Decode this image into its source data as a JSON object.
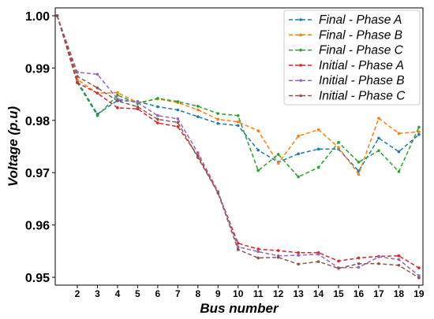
{
  "chart_data": {
    "type": "line",
    "xlabel": "Bus number",
    "ylabel": "Voltage (p.u)",
    "x": [
      1,
      2,
      3,
      4,
      5,
      6,
      7,
      8,
      9,
      10,
      11,
      12,
      13,
      14,
      15,
      16,
      17,
      18,
      19
    ],
    "x_tick_labels": [
      "2",
      "3",
      "4",
      "5",
      "6",
      "7",
      "8",
      "9",
      "10",
      "11",
      "12",
      "13",
      "14",
      "15",
      "16",
      "17",
      "18",
      "19"
    ],
    "xlim": [
      0.9,
      19.2
    ],
    "ylim": [
      0.9485,
      1.0015
    ],
    "y_ticks": [
      0.95,
      0.96,
      0.97,
      0.98,
      0.99,
      1.0
    ],
    "y_tick_labels": [
      "0.95",
      "0.96",
      "0.97",
      "0.98",
      "0.99",
      "1.00"
    ],
    "legend_position": "top-right",
    "grid": false,
    "series": [
      {
        "name": "Final - Phase A",
        "color": "#1f77b4",
        "values": [
          1.0,
          0.9875,
          0.9812,
          0.9838,
          0.9836,
          0.9826,
          0.982,
          0.9807,
          0.9794,
          0.979,
          0.9743,
          0.972,
          0.9736,
          0.9745,
          0.9745,
          0.9703,
          0.9766,
          0.974,
          0.9773
        ]
      },
      {
        "name": "Final - Phase B",
        "color": "#ff7f0e",
        "values": [
          1.0,
          0.9878,
          0.9852,
          0.9853,
          0.9834,
          0.9841,
          0.9834,
          0.982,
          0.9802,
          0.9797,
          0.978,
          0.9718,
          0.977,
          0.9782,
          0.9748,
          0.9697,
          0.9804,
          0.9775,
          0.9778
        ]
      },
      {
        "name": "Final - Phase C",
        "color": "#2ca02c",
        "values": [
          1.0,
          0.9872,
          0.9809,
          0.9848,
          0.9832,
          0.9842,
          0.9836,
          0.9827,
          0.9813,
          0.9809,
          0.9704,
          0.9735,
          0.9692,
          0.971,
          0.9758,
          0.972,
          0.9742,
          0.9702,
          0.9787
        ]
      },
      {
        "name": "Initial - Phase A",
        "color": "#d62728",
        "values": [
          1.0,
          0.9872,
          0.9852,
          0.9824,
          0.9822,
          0.9795,
          0.9788,
          0.9732,
          0.9662,
          0.9565,
          0.9554,
          0.9551,
          0.9547,
          0.9547,
          0.9531,
          0.9537,
          0.954,
          0.9541,
          0.9518
        ]
      },
      {
        "name": "Initial - Phase B",
        "color": "#9467bd",
        "values": [
          1.0,
          0.9892,
          0.9888,
          0.9841,
          0.9834,
          0.9809,
          0.9803,
          0.9738,
          0.9664,
          0.9558,
          0.9549,
          0.9541,
          0.9542,
          0.9544,
          0.9518,
          0.9519,
          0.9539,
          0.9534,
          0.9503
        ]
      },
      {
        "name": "Initial - Phase C",
        "color": "#8c564b",
        "values": [
          1.0,
          0.9884,
          0.9862,
          0.9837,
          0.9826,
          0.9802,
          0.9796,
          0.9729,
          0.9661,
          0.9553,
          0.9537,
          0.9538,
          0.9525,
          0.953,
          0.9517,
          0.9526,
          0.9526,
          0.9523,
          0.9499
        ]
      }
    ]
  }
}
